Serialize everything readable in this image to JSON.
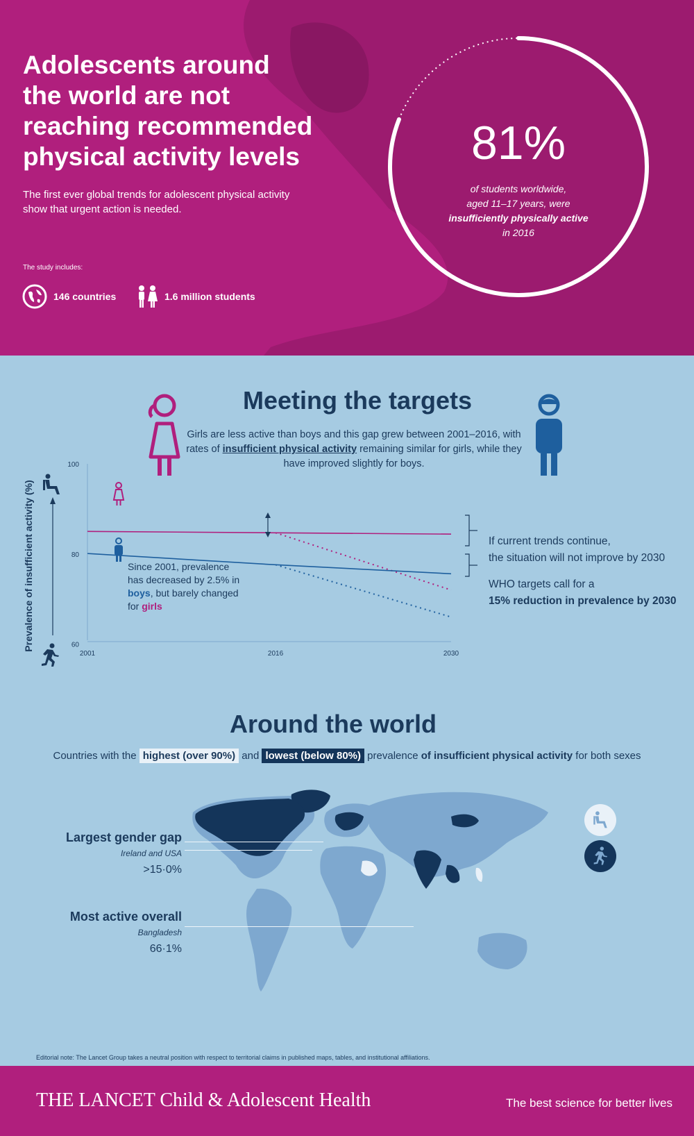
{
  "hero": {
    "title": "Adolescents around the world are not reaching recommended physical activity levels",
    "subtitle": "The first ever global trends for adolescent physical activity show that urgent action is needed.",
    "study_label": "The study includes:",
    "countries": "146 countries",
    "students": "1.6 million students",
    "percent": "81%",
    "percent_text_1": "of students worldwide,",
    "percent_text_2": "aged 11–17 years, were",
    "percent_text_3": "insufficiently physically active",
    "percent_text_4": "in 2016",
    "ring_fraction": 0.81
  },
  "targets": {
    "title": "Meeting the targets",
    "desc_1": "Girls are less active than boys and this gap grew between 2001–2016, with rates of",
    "desc_2": "insufficient physical activity",
    "desc_3": "remaining similar for girls, while they have improved slightly for boys.",
    "boys_note_1": "Since 2001, prevalence has decreased by 2.5% in",
    "boys_note_boys": "boys",
    "boys_note_2": ", but barely changed for",
    "boys_note_girls": "girls",
    "trend_1": "If current trends continue,",
    "trend_2": "the situation will not improve by 2030",
    "who_1": "WHO targets call for a",
    "who_2": "15% reduction in prevalence by 2030"
  },
  "chart_data": {
    "type": "line",
    "ylabel": "Prevalence of insufficient activity (%)",
    "ylim": [
      55,
      100
    ],
    "yticks": [
      60,
      80,
      100
    ],
    "xticks": [
      "2001",
      "2016",
      "2030"
    ],
    "series": [
      {
        "name": "girls",
        "color": "#b01f7d",
        "points": [
          [
            2001,
            85.0
          ],
          [
            2016,
            84.7
          ],
          [
            2030,
            84.4
          ]
        ],
        "target": [
          [
            2016,
            84.7
          ],
          [
            2030,
            72.0
          ]
        ]
      },
      {
        "name": "boys",
        "color": "#1e5f9e",
        "points": [
          [
            2001,
            80.1
          ],
          [
            2016,
            77.6
          ],
          [
            2030,
            75.6
          ]
        ],
        "target": [
          [
            2016,
            77.6
          ],
          [
            2030,
            66.0
          ]
        ]
      }
    ]
  },
  "world": {
    "title": "Around the world",
    "legend_pre": "Countries with the",
    "legend_high": "highest (over 90%)",
    "legend_and": "and",
    "legend_low": "lowest (below 80%)",
    "legend_post_1": "prevalence",
    "legend_post_2": "of insufficient physical activity",
    "legend_post_3": "for both sexes",
    "gap_title": "Largest gender gap",
    "gap_place": "Ireland and USA",
    "gap_value": ">15·0%",
    "active_title": "Most active overall",
    "active_place": "Bangladesh",
    "active_value": "66·1%",
    "colors": {
      "high": "#e9f1f8",
      "low": "#14355a",
      "mid": "#7ea8cf"
    }
  },
  "editorial": "Editorial note: The Lancet Group takes a neutral position with respect to territorial claims in published maps, tables, and institutional affiliations.",
  "footer": {
    "brand": "THE LANCET Child & Adolescent Health",
    "tagline": "The best science for better lives"
  }
}
